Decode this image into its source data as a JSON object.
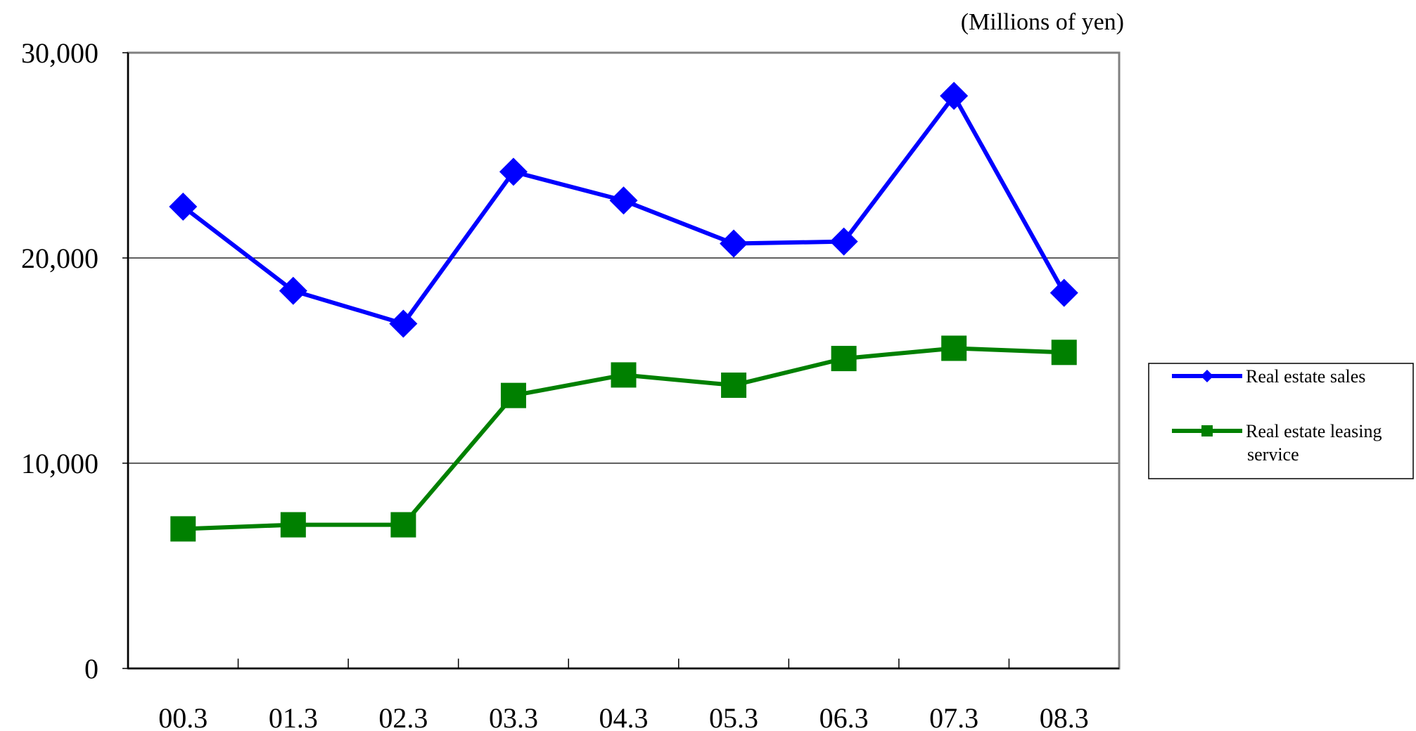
{
  "chart_data": {
    "type": "line",
    "unit_label": "(Millions of yen)",
    "categories": [
      "00.3",
      "01.3",
      "02.3",
      "03.3",
      "04.3",
      "05.3",
      "06.3",
      "07.3",
      "08.3"
    ],
    "y_ticks": [
      0,
      10000,
      20000,
      30000
    ],
    "y_tick_labels": [
      "0",
      "10,000",
      "20,000",
      "30,000"
    ],
    "ylim": [
      0,
      30000
    ],
    "grid": true,
    "legend_position": "right",
    "series": [
      {
        "name": "Real estate sales",
        "color": "#0000ff",
        "marker": "diamond",
        "values": [
          22500,
          18400,
          16800,
          24200,
          22800,
          20700,
          20800,
          27900,
          18300
        ]
      },
      {
        "name": "Real estate leasing service",
        "legend_lines": [
          "Real estate leasing",
          "service"
        ],
        "color": "#008000",
        "marker": "square",
        "values": [
          6800,
          7000,
          7000,
          13300,
          14300,
          13800,
          15100,
          15600,
          15400
        ]
      }
    ]
  }
}
